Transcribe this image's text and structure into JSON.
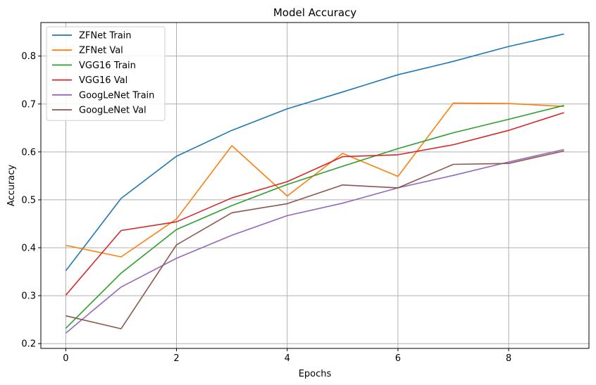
{
  "chart_data": {
    "type": "line",
    "title": "Model Accuracy",
    "xlabel": "Epochs",
    "ylabel": "Accuracy",
    "x": [
      0,
      1,
      2,
      3,
      4,
      5,
      6,
      7,
      8,
      9
    ],
    "xlim": [
      -0.45,
      9.45
    ],
    "ylim": [
      0.19,
      0.87
    ],
    "xticks": [
      0,
      2,
      4,
      6,
      8
    ],
    "yticks": [
      0.2,
      0.3,
      0.4,
      0.5,
      0.6,
      0.7,
      0.8
    ],
    "grid": true,
    "legend_position": "top-left",
    "series": [
      {
        "name": "ZFNet Train",
        "color": "#1f77b4",
        "values": [
          0.352,
          0.503,
          0.591,
          0.645,
          0.69,
          0.725,
          0.761,
          0.789,
          0.82,
          0.846
        ]
      },
      {
        "name": "ZFNet Val",
        "color": "#ff7f0e",
        "values": [
          0.405,
          0.381,
          0.46,
          0.613,
          0.508,
          0.597,
          0.549,
          0.702,
          0.701,
          0.695
        ]
      },
      {
        "name": "VGG16 Train",
        "color": "#2ca02c",
        "values": [
          0.232,
          0.347,
          0.438,
          0.488,
          0.532,
          0.57,
          0.607,
          0.64,
          0.668,
          0.697
        ]
      },
      {
        "name": "VGG16 Val",
        "color": "#d62728",
        "values": [
          0.301,
          0.436,
          0.454,
          0.504,
          0.538,
          0.59,
          0.594,
          0.615,
          0.645,
          0.682
        ]
      },
      {
        "name": "GoogLeNet Train",
        "color": "#9467bd",
        "values": [
          0.222,
          0.318,
          0.378,
          0.426,
          0.467,
          0.493,
          0.525,
          0.551,
          0.579,
          0.605
        ]
      },
      {
        "name": "GoogLeNet Val",
        "color": "#8c564b",
        "values": [
          0.258,
          0.231,
          0.406,
          0.473,
          0.492,
          0.531,
          0.525,
          0.574,
          0.576,
          0.602
        ]
      }
    ]
  }
}
